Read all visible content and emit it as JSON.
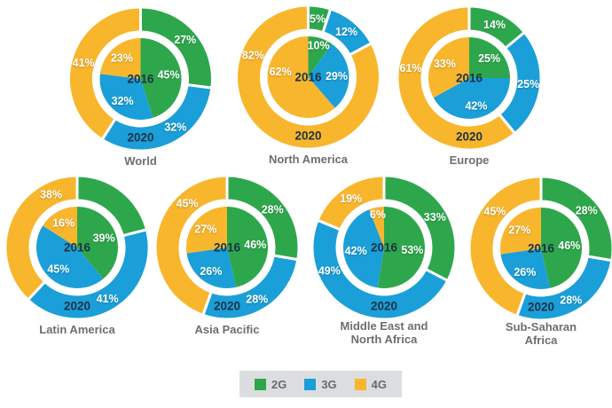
{
  "palette": {
    "2G": "#2EA74C",
    "3G": "#1B9FD8",
    "4G": "#F8B62D"
  },
  "label_colors": {
    "percent": "#FFFFFF",
    "year": "#1E3246",
    "title": "#6D6E71"
  },
  "legend": {
    "background": "#DCDDDE",
    "items": [
      {
        "key": "2G",
        "label": "2G",
        "color": "#2EA74C"
      },
      {
        "key": "3G",
        "label": "3G",
        "color": "#1B9FD8"
      },
      {
        "key": "4G",
        "label": "4G",
        "color": "#F8B62D"
      }
    ]
  },
  "chart_data": {
    "type": "nested-donut-grid",
    "unit": "%",
    "legend_entries": [
      "2G",
      "3G",
      "4G"
    ],
    "ring_meaning": {
      "inner": "2016",
      "outer": "2020"
    },
    "charts": [
      {
        "title": "World",
        "title_lines": [
          "World"
        ],
        "inner": {
          "year": "2016",
          "segments": [
            {
              "tech": "2G",
              "value": 45,
              "label": "45%"
            },
            {
              "tech": "3G",
              "value": 32,
              "label": "32%"
            },
            {
              "tech": "4G",
              "value": 23,
              "label": "23%"
            }
          ]
        },
        "outer": {
          "year": "2020",
          "segments": [
            {
              "tech": "2G",
              "value": 27,
              "label": "27%"
            },
            {
              "tech": "3G",
              "value": 32,
              "label": "32%"
            },
            {
              "tech": "4G",
              "value": 41,
              "label": "41%"
            }
          ]
        }
      },
      {
        "title": "North America",
        "title_lines": [
          "North America"
        ],
        "inner": {
          "year": "2016",
          "segments": [
            {
              "tech": "2G",
              "value": 10,
              "label": "10%"
            },
            {
              "tech": "3G",
              "value": 29,
              "label": "29%"
            },
            {
              "tech": "4G",
              "value": 62,
              "label": "62%"
            }
          ]
        },
        "outer": {
          "year": "2020",
          "segments": [
            {
              "tech": "2G",
              "value": 5,
              "label": "5%"
            },
            {
              "tech": "3G",
              "value": 12,
              "label": "12%"
            },
            {
              "tech": "4G",
              "value": 82,
              "label": "82%"
            }
          ]
        }
      },
      {
        "title": "Europe",
        "title_lines": [
          "Europe"
        ],
        "inner": {
          "year": "2016",
          "segments": [
            {
              "tech": "2G",
              "value": 25,
              "label": "25%"
            },
            {
              "tech": "3G",
              "value": 42,
              "label": "42%"
            },
            {
              "tech": "4G",
              "value": 33,
              "label": "33%"
            }
          ]
        },
        "outer": {
          "year": "2020",
          "segments": [
            {
              "tech": "2G",
              "value": 14,
              "label": "14%"
            },
            {
              "tech": "3G",
              "value": 25,
              "label": "25%"
            },
            {
              "tech": "4G",
              "value": 61,
              "label": "61%"
            }
          ]
        }
      },
      {
        "title": "Latin America",
        "title_lines": [
          "Latin America"
        ],
        "inner": {
          "year": "2016",
          "segments": [
            {
              "tech": "2G",
              "value": 39,
              "label": "39%"
            },
            {
              "tech": "3G",
              "value": 45,
              "label": "45%"
            },
            {
              "tech": "4G",
              "value": 16,
              "label": "16%"
            }
          ]
        },
        "outer": {
          "year": "2020",
          "segments": [
            {
              "tech": "2G",
              "value": 21,
              "label": ""
            },
            {
              "tech": "3G",
              "value": 41,
              "label": "41%"
            },
            {
              "tech": "4G",
              "value": 38,
              "label": "38%"
            }
          ]
        }
      },
      {
        "title": "Asia Pacific",
        "title_lines": [
          "Asia Pacific"
        ],
        "inner": {
          "year": "2016",
          "segments": [
            {
              "tech": "2G",
              "value": 46,
              "label": "46%"
            },
            {
              "tech": "3G",
              "value": 26,
              "label": "26%"
            },
            {
              "tech": "4G",
              "value": 27,
              "label": "27%"
            }
          ]
        },
        "outer": {
          "year": "2020",
          "segments": [
            {
              "tech": "2G",
              "value": 28,
              "label": "28%"
            },
            {
              "tech": "3G",
              "value": 28,
              "label": "28%"
            },
            {
              "tech": "4G",
              "value": 45,
              "label": "45%"
            }
          ]
        }
      },
      {
        "title": "Middle East and North Africa",
        "title_lines": [
          "Middle East and",
          "North Africa"
        ],
        "inner": {
          "year": "2016",
          "segments": [
            {
              "tech": "2G",
              "value": 53,
              "label": "53%"
            },
            {
              "tech": "3G",
              "value": 42,
              "label": "42%"
            },
            {
              "tech": "4G",
              "value": 6,
              "label": "6%"
            }
          ]
        },
        "outer": {
          "year": "2020",
          "segments": [
            {
              "tech": "2G",
              "value": 33,
              "label": "33%"
            },
            {
              "tech": "3G",
              "value": 49,
              "label": "49%"
            },
            {
              "tech": "4G",
              "value": 19,
              "label": "19%"
            }
          ]
        }
      },
      {
        "title": "Sub-Saharan Africa",
        "title_lines": [
          "Sub-Saharan",
          "Africa"
        ],
        "inner": {
          "year": "2016",
          "segments": [
            {
              "tech": "2G",
              "value": 46,
              "label": "46%"
            },
            {
              "tech": "3G",
              "value": 26,
              "label": "26%"
            },
            {
              "tech": "4G",
              "value": 27,
              "label": "27%"
            }
          ]
        },
        "outer": {
          "year": "2020",
          "segments": [
            {
              "tech": "2G",
              "value": 28,
              "label": "28%"
            },
            {
              "tech": "3G",
              "value": 28,
              "label": "28%"
            },
            {
              "tech": "4G",
              "value": 45,
              "label": "45%"
            }
          ]
        }
      }
    ]
  }
}
